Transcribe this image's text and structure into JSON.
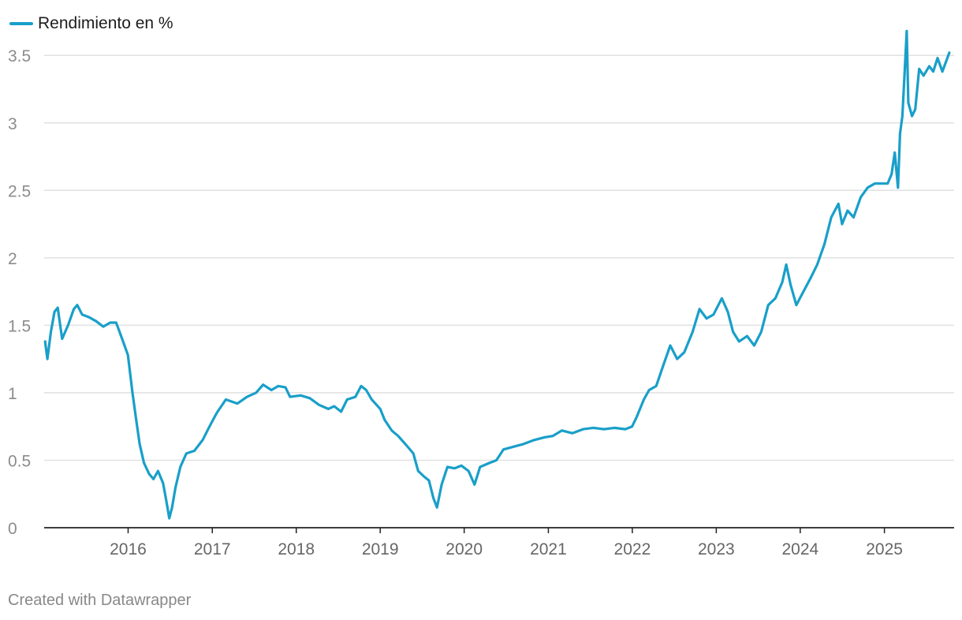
{
  "legend": {
    "label": "Rendimiento en %"
  },
  "footer": {
    "credit": "Created with Datawrapper"
  },
  "colors": {
    "line": "#199fc9",
    "grid": "#e1e1e1",
    "axis": "#222222"
  },
  "chart_data": {
    "type": "line",
    "title": "",
    "xlabel": "",
    "ylabel": "",
    "x_domain": [
      "2015-01-01",
      "2025-10-31"
    ],
    "ylim": [
      0,
      3.7
    ],
    "y_ticks": [
      0,
      0.5,
      1,
      1.5,
      2,
      2.5,
      3,
      3.5
    ],
    "y_tick_labels": [
      "0",
      "0.5",
      "1",
      "1.5",
      "2",
      "2.5",
      "3",
      "3.5"
    ],
    "x_ticks": [
      "2016-01-01",
      "2017-01-01",
      "2018-01-01",
      "2019-01-01",
      "2020-01-01",
      "2021-01-01",
      "2022-01-01",
      "2023-01-01",
      "2024-01-01",
      "2025-01-01"
    ],
    "x_tick_labels": [
      "2016",
      "2017",
      "2018",
      "2019",
      "2020",
      "2021",
      "2022",
      "2023",
      "2024",
      "2025"
    ],
    "grid": true,
    "legend_position": "top-left",
    "series": [
      {
        "name": "Rendimiento en %",
        "points": [
          [
            "2015-01-05",
            1.38
          ],
          [
            "2015-01-15",
            1.25
          ],
          [
            "2015-01-30",
            1.45
          ],
          [
            "2015-02-15",
            1.6
          ],
          [
            "2015-03-01",
            1.63
          ],
          [
            "2015-03-20",
            1.4
          ],
          [
            "2015-04-15",
            1.5
          ],
          [
            "2015-05-10",
            1.62
          ],
          [
            "2015-05-25",
            1.65
          ],
          [
            "2015-06-15",
            1.58
          ],
          [
            "2015-07-15",
            1.56
          ],
          [
            "2015-08-15",
            1.53
          ],
          [
            "2015-09-15",
            1.49
          ],
          [
            "2015-10-15",
            1.52
          ],
          [
            "2015-11-10",
            1.52
          ],
          [
            "2015-11-25",
            1.45
          ],
          [
            "2015-12-10",
            1.38
          ],
          [
            "2015-12-31",
            1.28
          ],
          [
            "2016-01-20",
            1.0
          ],
          [
            "2016-02-05",
            0.8
          ],
          [
            "2016-02-20",
            0.62
          ],
          [
            "2016-03-10",
            0.48
          ],
          [
            "2016-04-01",
            0.4
          ],
          [
            "2016-04-20",
            0.36
          ],
          [
            "2016-05-10",
            0.42
          ],
          [
            "2016-06-01",
            0.33
          ],
          [
            "2016-06-15",
            0.2
          ],
          [
            "2016-06-28",
            0.07
          ],
          [
            "2016-07-10",
            0.15
          ],
          [
            "2016-07-25",
            0.3
          ],
          [
            "2016-08-15",
            0.45
          ],
          [
            "2016-09-10",
            0.55
          ],
          [
            "2016-10-15",
            0.57
          ],
          [
            "2016-11-20",
            0.65
          ],
          [
            "2016-12-20",
            0.75
          ],
          [
            "2017-01-20",
            0.85
          ],
          [
            "2017-03-01",
            0.95
          ],
          [
            "2017-04-20",
            0.92
          ],
          [
            "2017-06-01",
            0.97
          ],
          [
            "2017-07-10",
            1.0
          ],
          [
            "2017-08-10",
            1.06
          ],
          [
            "2017-09-15",
            1.02
          ],
          [
            "2017-10-15",
            1.05
          ],
          [
            "2017-11-15",
            1.04
          ],
          [
            "2017-12-05",
            0.97
          ],
          [
            "2018-01-20",
            0.98
          ],
          [
            "2018-03-01",
            0.96
          ],
          [
            "2018-04-10",
            0.91
          ],
          [
            "2018-05-20",
            0.88
          ],
          [
            "2018-06-15",
            0.9
          ],
          [
            "2018-07-15",
            0.86
          ],
          [
            "2018-08-10",
            0.95
          ],
          [
            "2018-09-15",
            0.97
          ],
          [
            "2018-10-10",
            1.05
          ],
          [
            "2018-11-01",
            1.02
          ],
          [
            "2018-11-25",
            0.95
          ],
          [
            "2019-01-01",
            0.88
          ],
          [
            "2019-01-20",
            0.8
          ],
          [
            "2019-02-20",
            0.72
          ],
          [
            "2019-03-20",
            0.68
          ],
          [
            "2019-04-20",
            0.62
          ],
          [
            "2019-05-25",
            0.55
          ],
          [
            "2019-06-15",
            0.42
          ],
          [
            "2019-07-10",
            0.38
          ],
          [
            "2019-08-01",
            0.35
          ],
          [
            "2019-08-20",
            0.22
          ],
          [
            "2019-09-05",
            0.15
          ],
          [
            "2019-09-25",
            0.32
          ],
          [
            "2019-10-20",
            0.45
          ],
          [
            "2019-11-20",
            0.44
          ],
          [
            "2019-12-20",
            0.46
          ],
          [
            "2020-01-20",
            0.42
          ],
          [
            "2020-02-15",
            0.32
          ],
          [
            "2020-03-10",
            0.45
          ],
          [
            "2020-04-20",
            0.48
          ],
          [
            "2020-05-20",
            0.5
          ],
          [
            "2020-06-20",
            0.58
          ],
          [
            "2020-08-01",
            0.6
          ],
          [
            "2020-09-15",
            0.62
          ],
          [
            "2020-11-01",
            0.65
          ],
          [
            "2020-12-15",
            0.67
          ],
          [
            "2021-01-20",
            0.68
          ],
          [
            "2021-03-01",
            0.72
          ],
          [
            "2021-04-15",
            0.7
          ],
          [
            "2021-06-01",
            0.73
          ],
          [
            "2021-07-15",
            0.74
          ],
          [
            "2021-09-01",
            0.73
          ],
          [
            "2021-10-15",
            0.74
          ],
          [
            "2021-12-01",
            0.73
          ],
          [
            "2021-12-31",
            0.75
          ],
          [
            "2022-01-20",
            0.82
          ],
          [
            "2022-02-20",
            0.95
          ],
          [
            "2022-03-15",
            1.02
          ],
          [
            "2022-04-15",
            1.05
          ],
          [
            "2022-05-15",
            1.2
          ],
          [
            "2022-06-15",
            1.35
          ],
          [
            "2022-07-15",
            1.25
          ],
          [
            "2022-08-15",
            1.3
          ],
          [
            "2022-09-20",
            1.45
          ],
          [
            "2022-10-20",
            1.62
          ],
          [
            "2022-11-20",
            1.55
          ],
          [
            "2022-12-20",
            1.58
          ],
          [
            "2023-01-25",
            1.7
          ],
          [
            "2023-02-20",
            1.6
          ],
          [
            "2023-03-15",
            1.45
          ],
          [
            "2023-04-10",
            1.38
          ],
          [
            "2023-05-15",
            1.42
          ],
          [
            "2023-06-15",
            1.35
          ],
          [
            "2023-07-15",
            1.45
          ],
          [
            "2023-08-15",
            1.65
          ],
          [
            "2023-09-15",
            1.7
          ],
          [
            "2023-10-15",
            1.82
          ],
          [
            "2023-11-01",
            1.95
          ],
          [
            "2023-11-20",
            1.8
          ],
          [
            "2023-12-15",
            1.65
          ],
          [
            "2024-01-15",
            1.75
          ],
          [
            "2024-02-15",
            1.85
          ],
          [
            "2024-03-15",
            1.95
          ],
          [
            "2024-04-15",
            2.1
          ],
          [
            "2024-05-15",
            2.3
          ],
          [
            "2024-06-15",
            2.4
          ],
          [
            "2024-07-01",
            2.25
          ],
          [
            "2024-07-25",
            2.35
          ],
          [
            "2024-08-20",
            2.3
          ],
          [
            "2024-09-20",
            2.45
          ],
          [
            "2024-10-20",
            2.52
          ],
          [
            "2024-11-20",
            2.55
          ],
          [
            "2024-12-20",
            2.55
          ],
          [
            "2025-01-15",
            2.55
          ],
          [
            "2025-02-01",
            2.62
          ],
          [
            "2025-02-15",
            2.78
          ],
          [
            "2025-03-01",
            2.52
          ],
          [
            "2025-03-10",
            2.92
          ],
          [
            "2025-03-20",
            3.05
          ],
          [
            "2025-04-01",
            3.45
          ],
          [
            "2025-04-08",
            3.68
          ],
          [
            "2025-04-15",
            3.15
          ],
          [
            "2025-05-01",
            3.05
          ],
          [
            "2025-05-15",
            3.1
          ],
          [
            "2025-06-01",
            3.4
          ],
          [
            "2025-06-20",
            3.35
          ],
          [
            "2025-07-15",
            3.42
          ],
          [
            "2025-08-01",
            3.38
          ],
          [
            "2025-08-20",
            3.48
          ],
          [
            "2025-09-10",
            3.38
          ],
          [
            "2025-09-25",
            3.45
          ],
          [
            "2025-10-10",
            3.52
          ]
        ]
      }
    ]
  }
}
